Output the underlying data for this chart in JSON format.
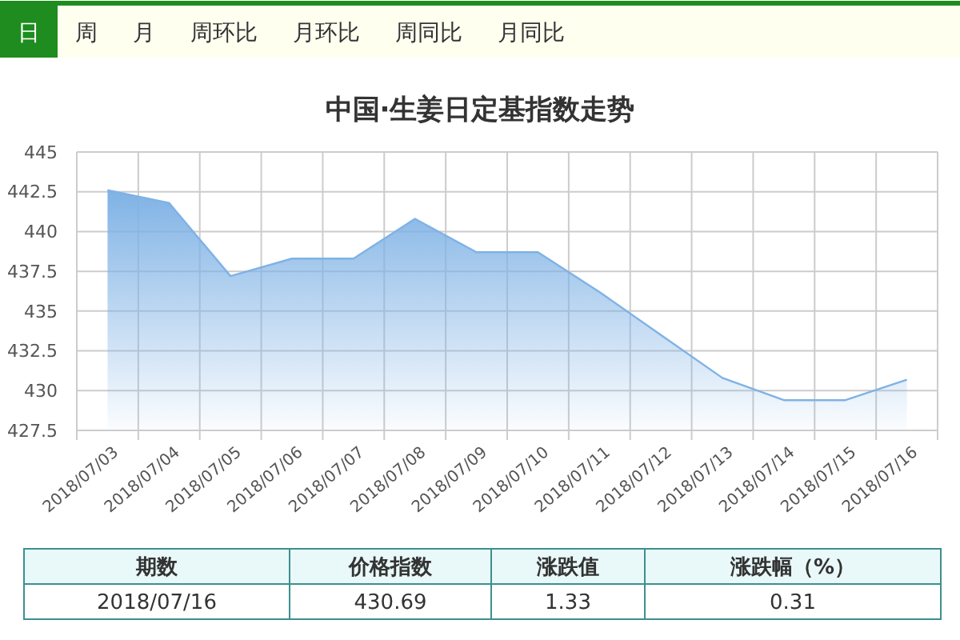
{
  "chart_data": [
    {
      "type": "other",
      "annotations": [
        "日",
        "周",
        "月",
        "周环比",
        "月环比",
        "周同比",
        "月同比"
      ]
    },
    {
      "type": "area",
      "title": "中国·生姜日定基指数走势",
      "categories": [
        "2018/07/03",
        "2018/07/04",
        "2018/07/05",
        "2018/07/06",
        "2018/07/07",
        "2018/07/08",
        "2018/07/09",
        "2018/07/10",
        "2018/07/11",
        "2018/07/12",
        "2018/07/13",
        "2018/07/14",
        "2018/07/15",
        "2018/07/16"
      ],
      "series": [
        {
          "color": "#7fb2e5",
          "values": [
            442.6,
            441.8,
            437.2,
            438.3,
            438.3,
            440.8,
            438.7,
            438.7,
            436.2,
            433.5,
            430.8,
            429.4,
            429.4,
            430.69
          ]
        }
      ],
      "ylim": [
        427.5,
        445
      ],
      "yticks": [
        427.5,
        430,
        432.5,
        435,
        437.5,
        440,
        442.5,
        445
      ],
      "grid": true
    },
    {
      "type": "other",
      "annotations": [
        "期数",
        "价格指数",
        "涨跌值",
        "涨跌幅（%）",
        "2018/07/16",
        "430.69",
        "1.33",
        "0.31"
      ]
    }
  ]
}
